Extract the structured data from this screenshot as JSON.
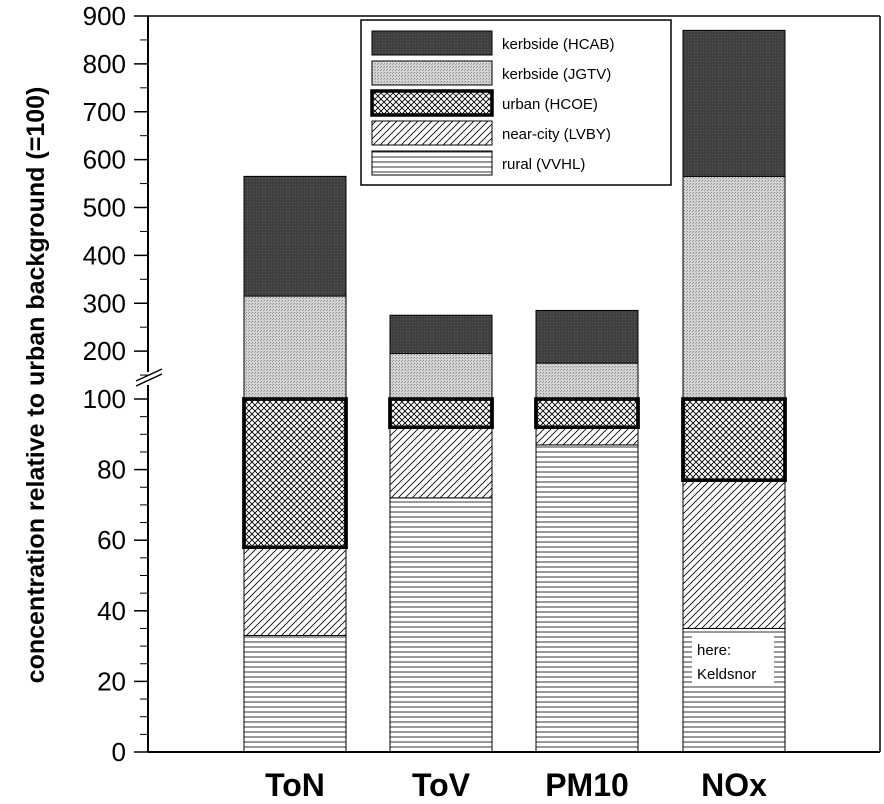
{
  "chart_data": {
    "type": "bar",
    "stacked": true,
    "broken_axis": true,
    "categories": [
      "ToN",
      "ToV",
      "PM10",
      "NOx"
    ],
    "series": [
      {
        "name": "rural (VVHL)",
        "key": "rural",
        "values": [
          33,
          72,
          87,
          35
        ]
      },
      {
        "name": "near-city (LVBY)",
        "key": "nearcity",
        "values": [
          58,
          92,
          92,
          77
        ]
      },
      {
        "name": "urban (HCOE)",
        "key": "urban",
        "values": [
          100,
          100,
          100,
          100
        ]
      },
      {
        "name": "kerbside (JGTV)",
        "key": "jgtv",
        "values": [
          315,
          195,
          175,
          565
        ]
      },
      {
        "name": "kerbside (HCAB)",
        "key": "hcab",
        "values": [
          565,
          275,
          285,
          870
        ]
      }
    ],
    "value_note": "values are cumulative top of each stacked segment",
    "lower_axis": {
      "ylim": [
        0,
        100
      ],
      "ticks": [
        0,
        20,
        40,
        60,
        80,
        100
      ],
      "tick_labels": [
        "0",
        "20",
        "40",
        "60",
        "80",
        "100"
      ]
    },
    "upper_axis": {
      "ylim": [
        100,
        900
      ],
      "ticks": [
        200,
        300,
        400,
        500,
        600,
        700,
        800,
        900
      ],
      "tick_labels": [
        "200",
        "300",
        "400",
        "500",
        "600",
        "700",
        "800",
        "900"
      ]
    },
    "ylabel": "concentration relative to urban background (=100)",
    "xlabel": "",
    "legend_position": "top-right",
    "legend_order": [
      "hcab",
      "jgtv",
      "urban",
      "nearcity",
      "rural"
    ],
    "annotation": {
      "category": "NOx",
      "text_line1": "here:",
      "text_line2": "Keldsnor"
    },
    "grid": false
  },
  "colors": {
    "hcab": "#404040",
    "jgtv": "#c0c0c0",
    "axis": "#000000"
  }
}
